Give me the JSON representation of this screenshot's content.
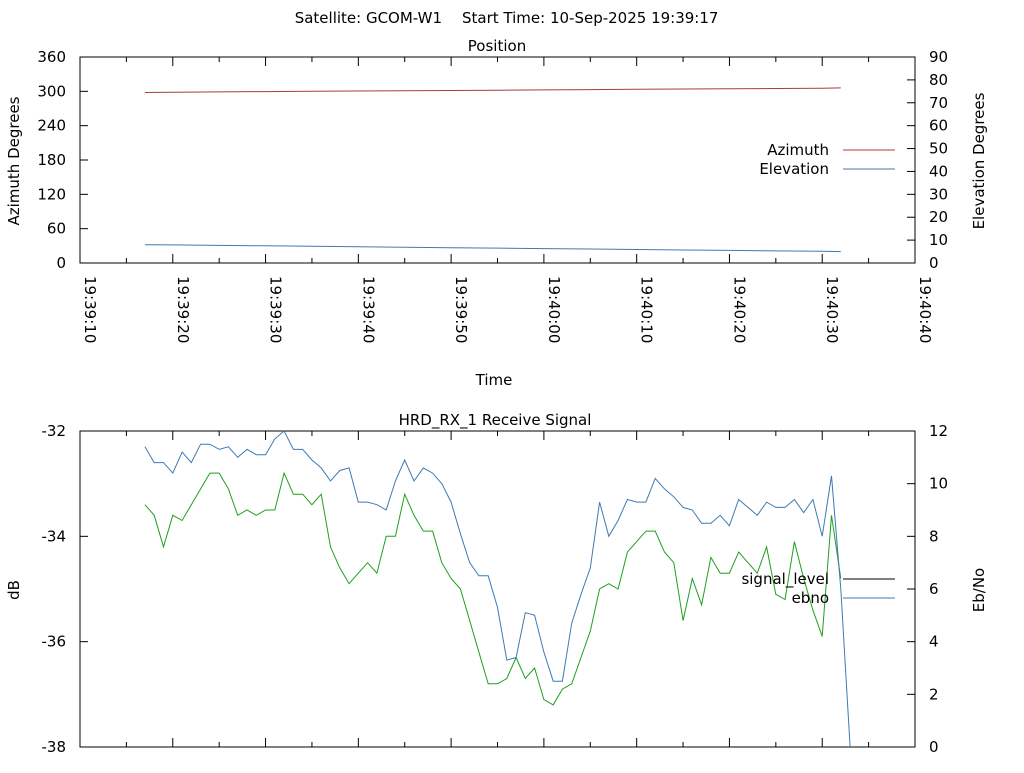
{
  "header": {
    "satellite": "Satellite: GCOM-W1",
    "start_time": "Start Time: 10-Sep-2025 19:39:17"
  },
  "chart_data": [
    {
      "type": "line",
      "title": "Position",
      "xlabel": "Time",
      "ylabel": "Azimuth Degrees",
      "y2label": "Elevation Degrees",
      "xlim": [
        "19:39:10",
        "19:40:40"
      ],
      "ylim": [
        0,
        360
      ],
      "y2lim": [
        0,
        90
      ],
      "xticks": [
        "19:39:10",
        "19:39:20",
        "19:39:30",
        "19:39:40",
        "19:39:50",
        "19:40:00",
        "19:40:10",
        "19:40:20",
        "19:40:30",
        "19:40:40"
      ],
      "yticks": [
        "0",
        "60",
        "120",
        "180",
        "240",
        "300",
        "360"
      ],
      "y2ticks": [
        "0",
        "10",
        "20",
        "30",
        "40",
        "50",
        "60",
        "70",
        "80",
        "90"
      ],
      "legend_position": "right",
      "colors": {
        "Azimuth": "#b03a3a",
        "Elevation": "#3f7ab0"
      },
      "series": [
        {
          "name": "Azimuth",
          "axis": "left",
          "x": [
            "19:39:17",
            "19:39:20",
            "19:39:25",
            "19:39:30",
            "19:39:35",
            "19:39:40",
            "19:39:45",
            "19:39:50",
            "19:39:55",
            "19:40:00",
            "19:40:05",
            "19:40:10",
            "19:40:15",
            "19:40:20",
            "19:40:25",
            "19:40:30",
            "19:40:32"
          ],
          "y": [
            298,
            298.5,
            299,
            299.5,
            300,
            300.5,
            301,
            301.5,
            302,
            302.5,
            303,
            303.5,
            304,
            304.5,
            305,
            305.5,
            306
          ]
        },
        {
          "name": "Elevation",
          "axis": "right",
          "x": [
            "19:39:17",
            "19:39:20",
            "19:39:25",
            "19:39:30",
            "19:39:35",
            "19:39:40",
            "19:39:45",
            "19:39:50",
            "19:39:55",
            "19:40:00",
            "19:40:05",
            "19:40:10",
            "19:40:15",
            "19:40:20",
            "19:40:25",
            "19:40:30",
            "19:40:32"
          ],
          "y": [
            8.0,
            7.9,
            7.7,
            7.5,
            7.3,
            7.1,
            6.9,
            6.7,
            6.5,
            6.3,
            6.1,
            5.9,
            5.7,
            5.5,
            5.3,
            5.1,
            5.0
          ]
        }
      ]
    },
    {
      "type": "line",
      "title": "HRD_RX_1 Receive Signal",
      "xlabel": "",
      "ylabel": "dB",
      "y2label": "Eb/No",
      "xlim": [
        "19:39:10",
        "19:40:40"
      ],
      "ylim": [
        -38,
        -32
      ],
      "y2lim": [
        0,
        12
      ],
      "yticks": [
        "-32",
        "-34",
        "-36",
        "-38"
      ],
      "y2ticks": [
        "0",
        "2",
        "4",
        "6",
        "8",
        "10",
        "12"
      ],
      "legend_position": "right",
      "colors": {
        "signal_level": "#000000",
        "ebno": "#3f7ab0",
        "signal_trace": "#1ea01e"
      },
      "series": [
        {
          "name": "signal_level",
          "axis": "left",
          "color": "#1ea01e",
          "x": [
            "19:39:17",
            "19:39:18",
            "19:39:19",
            "19:39:20",
            "19:39:21",
            "19:39:22",
            "19:39:23",
            "19:39:24",
            "19:39:25",
            "19:39:26",
            "19:39:27",
            "19:39:28",
            "19:39:29",
            "19:39:30",
            "19:39:31",
            "19:39:32",
            "19:39:33",
            "19:39:34",
            "19:39:35",
            "19:39:36",
            "19:39:37",
            "19:39:38",
            "19:39:39",
            "19:39:40",
            "19:39:41",
            "19:39:42",
            "19:39:43",
            "19:39:44",
            "19:39:45",
            "19:39:46",
            "19:39:47",
            "19:39:48",
            "19:39:49",
            "19:39:50",
            "19:39:51",
            "19:39:52",
            "19:39:53",
            "19:39:54",
            "19:39:55",
            "19:39:56",
            "19:39:57",
            "19:39:58",
            "19:39:59",
            "19:40:00",
            "19:40:01",
            "19:40:02",
            "19:40:03",
            "19:40:04",
            "19:40:05",
            "19:40:06",
            "19:40:07",
            "19:40:08",
            "19:40:09",
            "19:40:10",
            "19:40:11",
            "19:40:12",
            "19:40:13",
            "19:40:14",
            "19:40:15",
            "19:40:16",
            "19:40:17",
            "19:40:18",
            "19:40:19",
            "19:40:20",
            "19:40:21",
            "19:40:22",
            "19:40:23",
            "19:40:24",
            "19:40:25",
            "19:40:26",
            "19:40:27",
            "19:40:28",
            "19:40:29",
            "19:40:30",
            "19:40:31",
            "19:40:32"
          ],
          "y": [
            -33.4,
            -33.6,
            -34.2,
            -33.6,
            -33.7,
            -33.4,
            -33.1,
            -32.8,
            -32.8,
            -33.1,
            -33.6,
            -33.5,
            -33.6,
            -33.5,
            -33.5,
            -32.8,
            -33.2,
            -33.2,
            -33.4,
            -33.2,
            -34.2,
            -34.6,
            -34.9,
            -34.7,
            -34.5,
            -34.7,
            -34.0,
            -34.0,
            -33.2,
            -33.6,
            -33.9,
            -33.9,
            -34.5,
            -34.8,
            -35.0,
            -35.6,
            -36.2,
            -36.8,
            -36.8,
            -36.7,
            -36.3,
            -36.7,
            -36.5,
            -37.1,
            -37.2,
            -36.9,
            -36.8,
            -36.3,
            -35.8,
            -35.0,
            -34.9,
            -35.0,
            -34.3,
            -34.1,
            -33.9,
            -33.9,
            -34.3,
            -34.5,
            -35.6,
            -34.8,
            -35.3,
            -34.4,
            -34.7,
            -34.7,
            -34.3,
            -34.5,
            -34.7,
            -34.2,
            -35.1,
            -35.2,
            -34.1,
            -34.8,
            -35.4,
            -35.9,
            -33.6,
            -34.8
          ]
        },
        {
          "name": "ebno",
          "axis": "right",
          "color": "#3f7ab0",
          "x": [
            "19:39:17",
            "19:39:18",
            "19:39:19",
            "19:39:20",
            "19:39:21",
            "19:39:22",
            "19:39:23",
            "19:39:24",
            "19:39:25",
            "19:39:26",
            "19:39:27",
            "19:39:28",
            "19:39:29",
            "19:39:30",
            "19:39:31",
            "19:39:32",
            "19:39:33",
            "19:39:34",
            "19:39:35",
            "19:39:36",
            "19:39:37",
            "19:39:38",
            "19:39:39",
            "19:39:40",
            "19:39:41",
            "19:39:42",
            "19:39:43",
            "19:39:44",
            "19:39:45",
            "19:39:46",
            "19:39:47",
            "19:39:48",
            "19:39:49",
            "19:39:50",
            "19:39:51",
            "19:39:52",
            "19:39:53",
            "19:39:54",
            "19:39:55",
            "19:39:56",
            "19:39:57",
            "19:39:58",
            "19:39:59",
            "19:40:00",
            "19:40:01",
            "19:40:02",
            "19:40:03",
            "19:40:04",
            "19:40:05",
            "19:40:06",
            "19:40:07",
            "19:40:08",
            "19:40:09",
            "19:40:10",
            "19:40:11",
            "19:40:12",
            "19:40:13",
            "19:40:14",
            "19:40:15",
            "19:40:16",
            "19:40:17",
            "19:40:18",
            "19:40:19",
            "19:40:20",
            "19:40:21",
            "19:40:22",
            "19:40:23",
            "19:40:24",
            "19:40:25",
            "19:40:26",
            "19:40:27",
            "19:40:28",
            "19:40:29",
            "19:40:30",
            "19:40:31",
            "19:40:32",
            "19:40:33"
          ],
          "y": [
            11.4,
            10.8,
            10.8,
            10.4,
            11.2,
            10.8,
            11.5,
            11.5,
            11.3,
            11.4,
            11.0,
            11.3,
            11.1,
            11.1,
            11.7,
            12.0,
            11.3,
            11.3,
            10.9,
            10.6,
            10.1,
            10.5,
            10.6,
            9.3,
            9.3,
            9.2,
            9.0,
            10.1,
            10.9,
            10.1,
            10.6,
            10.4,
            10.0,
            9.3,
            8.1,
            7.0,
            6.5,
            6.5,
            5.3,
            3.3,
            3.4,
            5.1,
            5.0,
            3.6,
            2.5,
            2.5,
            4.7,
            5.8,
            6.8,
            9.3,
            8.0,
            8.6,
            9.4,
            9.3,
            9.3,
            10.2,
            9.8,
            9.5,
            9.1,
            9.0,
            8.5,
            8.5,
            8.8,
            8.4,
            9.4,
            9.1,
            8.8,
            9.3,
            9.1,
            9.1,
            9.4,
            8.9,
            9.4,
            8.0,
            10.3,
            6.0,
            0.0
          ]
        }
      ]
    }
  ]
}
